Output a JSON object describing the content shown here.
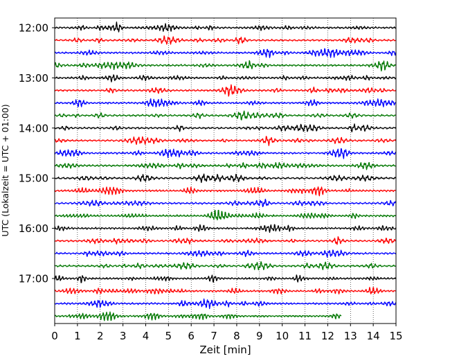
{
  "chart_data": {
    "type": "line",
    "title": "",
    "xlabel": "Zeit  [min]",
    "ylabel": "UTC (Lokalzeit = UTC + 01:00)",
    "xlim": [
      0,
      15
    ],
    "x_ticks": [
      "0",
      "1",
      "2",
      "3",
      "4",
      "5",
      "6",
      "7",
      "8",
      "9",
      "10",
      "11",
      "12",
      "13",
      "14",
      "15"
    ],
    "y_ticks": [
      "12:00",
      "13:00",
      "14:00",
      "15:00",
      "16:00",
      "17:00"
    ],
    "grid": "vertical dotted",
    "trace_minutes": 15,
    "trace_colors": [
      "#000000",
      "#ff0000",
      "#0000ff",
      "#007700"
    ],
    "traces": [
      {
        "start": "12:00",
        "end_min": 15
      },
      {
        "start": "12:15",
        "end_min": 15
      },
      {
        "start": "12:30",
        "end_min": 15
      },
      {
        "start": "12:45",
        "end_min": 15
      },
      {
        "start": "13:00",
        "end_min": 15
      },
      {
        "start": "13:15",
        "end_min": 15
      },
      {
        "start": "13:30",
        "end_min": 15
      },
      {
        "start": "13:45",
        "end_min": 15
      },
      {
        "start": "14:00",
        "end_min": 15
      },
      {
        "start": "14:15",
        "end_min": 15
      },
      {
        "start": "14:30",
        "end_min": 15
      },
      {
        "start": "14:45",
        "end_min": 15
      },
      {
        "start": "15:00",
        "end_min": 15
      },
      {
        "start": "15:15",
        "end_min": 15
      },
      {
        "start": "15:30",
        "end_min": 15
      },
      {
        "start": "15:45",
        "end_min": 15
      },
      {
        "start": "16:00",
        "end_min": 15
      },
      {
        "start": "16:15",
        "end_min": 15
      },
      {
        "start": "16:30",
        "end_min": 15
      },
      {
        "start": "16:45",
        "end_min": 15
      },
      {
        "start": "17:00",
        "end_min": 15
      },
      {
        "start": "17:15",
        "end_min": 15
      },
      {
        "start": "17:30",
        "end_min": 15
      },
      {
        "start": "17:45",
        "end_min": 12.6
      }
    ]
  }
}
